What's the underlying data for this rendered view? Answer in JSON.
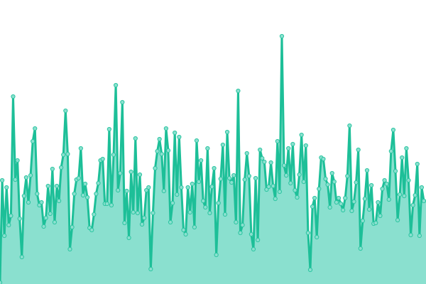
{
  "chart_data": {
    "type": "area",
    "title": "",
    "xlabel": "",
    "ylabel": "",
    "ylim": [
      0,
      400
    ],
    "grid": false,
    "legend": "none",
    "markers": true,
    "colors": {
      "line": "#1dbf98",
      "area": "#8ae0cf",
      "marker_fill": "#8ae0cf",
      "marker_stroke": "#2cc5a1",
      "background": "#ffffff"
    },
    "series": [
      {
        "values": [
          2,
          146,
          68,
          136,
          83,
          96,
          264,
          147,
          174,
          92,
          38,
          124,
          150,
          115,
          153,
          201,
          219,
          127,
          111,
          115,
          81,
          93,
          138,
          99,
          162,
          87,
          138,
          117,
          164,
          182,
          244,
          183,
          49,
          80,
          127,
          147,
          149,
          191,
          125,
          141,
          122,
          79,
          76,
          98,
          127,
          142,
          174,
          176,
          113,
          113,
          218,
          111,
          182,
          280,
          132,
          156,
          256,
          86,
          131,
          65,
          158,
          101,
          205,
          100,
          154,
          84,
          93,
          132,
          136,
          21,
          100,
          163,
          187,
          204,
          183,
          131,
          219,
          188,
          87,
          114,
          213,
          126,
          207,
          136,
          76,
          70,
          136,
          101,
          141,
          80,
          202,
          144,
          174,
          117,
          108,
          191,
          100,
          137,
          163,
          41,
          114,
          148,
          196,
          98,
          214,
          149,
          143,
          153,
          87,
          272,
          72,
          83,
          147,
          184,
          152,
          70,
          49,
          149,
          62,
          189,
          177,
          172,
          133,
          137,
          171,
          138,
          120,
          201,
          130,
          349,
          167,
          153,
          191,
          142,
          197,
          132,
          122,
          154,
          210,
          144,
          195,
          72,
          20,
          109,
          121,
          66,
          134,
          178,
          176,
          148,
          140,
          108,
          156,
          144,
          115,
          121,
          113,
          104,
          121,
          152,
          223,
          103,
          116,
          143,
          189,
          50,
          89,
          120,
          160,
          105,
          139,
          85,
          86,
          115,
          96,
          134,
          146,
          141,
          119,
          187,
          217,
          159,
          90,
          126,
          178,
          124,
          191,
          146,
          69,
          111,
          125,
          169,
          68,
          136,
          117
        ]
      }
    ]
  }
}
